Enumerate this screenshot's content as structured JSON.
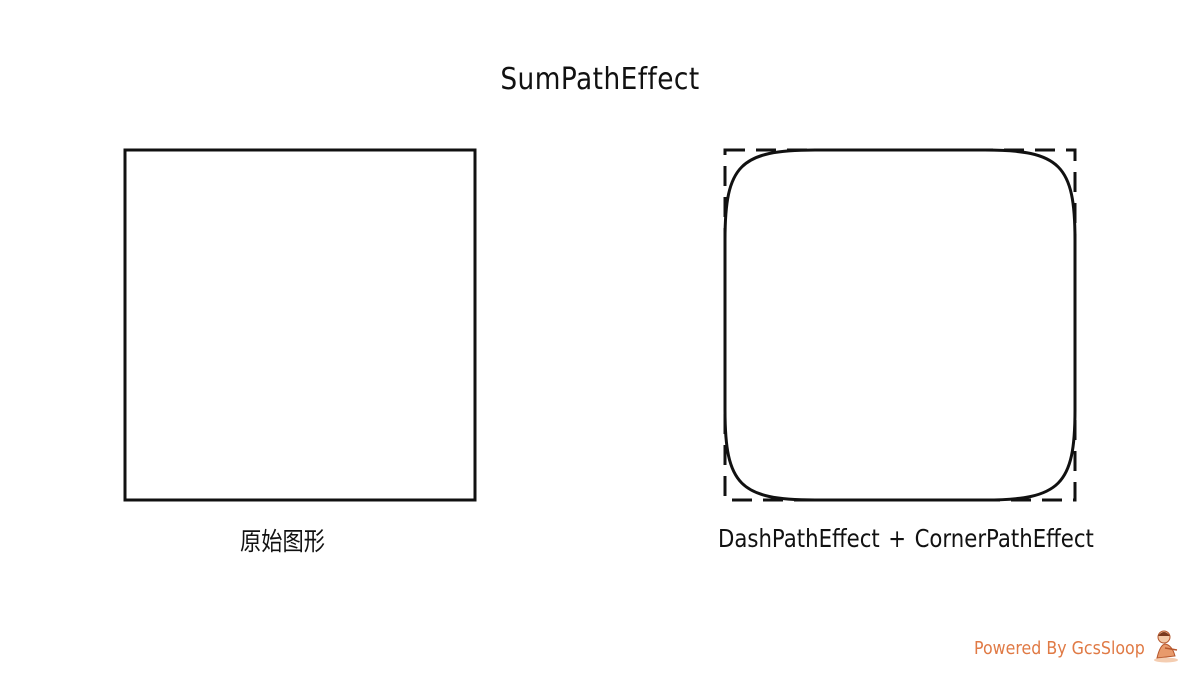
{
  "title": "SumPathEffect",
  "left_panel": {
    "caption": "原始图形"
  },
  "right_panel": {
    "caption_part1": "DashPathEffect",
    "caption_operator": "+",
    "caption_part2": "CornerPathEffect"
  },
  "footer": {
    "text": "Powered By GcsSloop"
  },
  "colors": {
    "stroke": "#111111",
    "footer": "#e07a45"
  },
  "icons": {
    "mascot": "mascot-logo"
  }
}
